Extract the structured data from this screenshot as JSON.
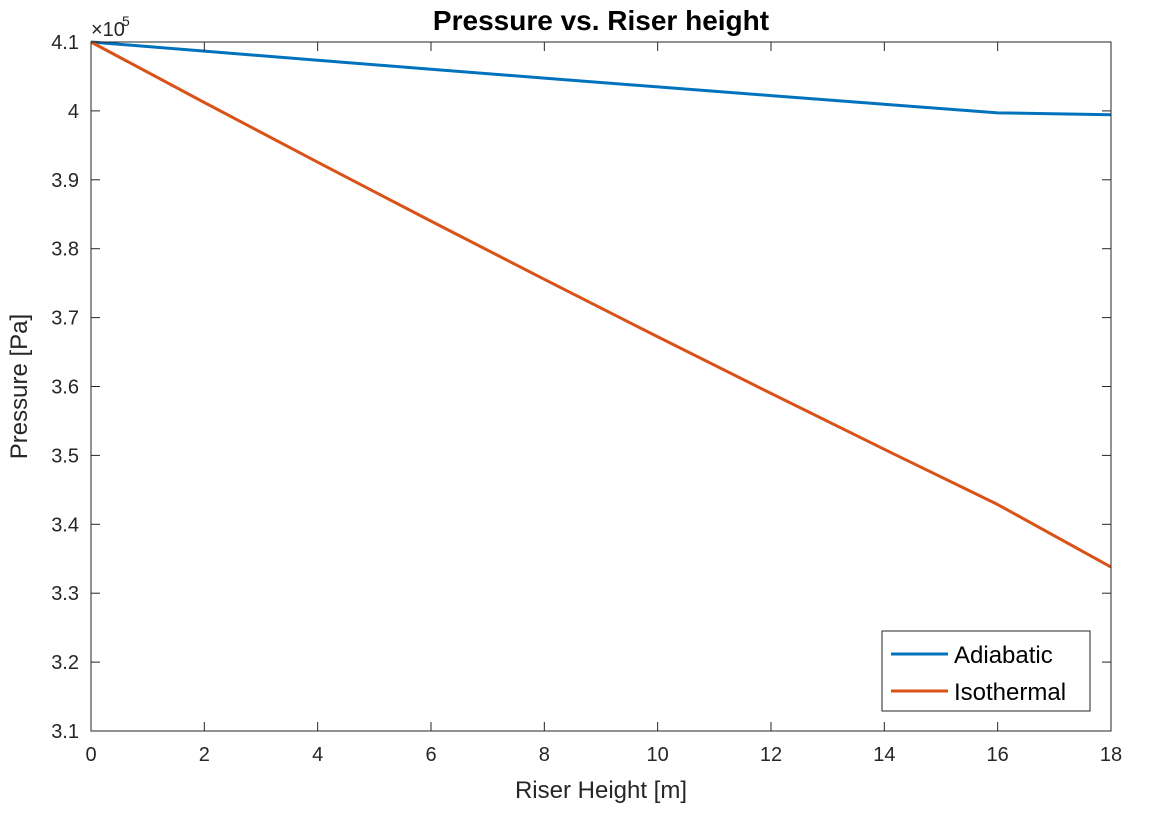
{
  "chart_data": {
    "type": "line",
    "title": "Pressure vs. Riser height",
    "xlabel": "Riser Height [m]",
    "ylabel": "Pressure [Pa]",
    "y_multiplier": "×10",
    "y_exponent": "5",
    "xlim": [
      0,
      18
    ],
    "ylim": [
      3.1,
      4.1
    ],
    "xticks": [
      0,
      2,
      4,
      6,
      8,
      10,
      12,
      14,
      16,
      18
    ],
    "yticks": [
      3.1,
      3.2,
      3.3,
      3.4,
      3.5,
      3.6,
      3.7,
      3.8,
      3.9,
      4.0,
      4.1
    ],
    "xtick_labels": [
      "0",
      "2",
      "4",
      "6",
      "8",
      "10",
      "12",
      "14",
      "16",
      "18"
    ],
    "ytick_labels": [
      "3.1",
      "3.2",
      "3.3",
      "3.4",
      "3.5",
      "3.6",
      "3.7",
      "3.8",
      "3.9",
      "4",
      "4.1"
    ],
    "grid": false,
    "legend_position": "bottom-right",
    "series": [
      {
        "name": "Adiabatic",
        "color": "#0072BD",
        "x": [
          0,
          2,
          4,
          6,
          8,
          10,
          12,
          14,
          16,
          18
        ],
        "y": [
          4.1,
          4.0867,
          4.0735,
          4.0605,
          4.0476,
          4.0348,
          4.0222,
          4.0096,
          3.9972,
          3.9945
        ]
      },
      {
        "name": "Isothermal",
        "color": "#D95319",
        "x": [
          0,
          2,
          4,
          6,
          8,
          10,
          12,
          14,
          16,
          18
        ],
        "y": [
          4.1,
          4.0122,
          3.9255,
          3.84,
          3.7556,
          3.6722,
          3.59,
          3.5088,
          3.4287,
          3.338
        ]
      }
    ]
  }
}
